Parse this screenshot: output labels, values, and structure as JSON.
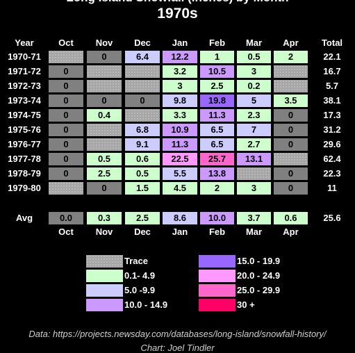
{
  "chart_data": {
    "type": "table",
    "title": "1970s",
    "columns": [
      "Oct",
      "Nov",
      "Dec",
      "Jan",
      "Feb",
      "Mar",
      "Apr"
    ],
    "header_year": "Year",
    "header_total": "Total",
    "rows": [
      {
        "year": "1970-71",
        "values": [
          null,
          "0",
          "6.4",
          "12.2",
          "1",
          "0.5",
          "2"
        ],
        "total": "22.1"
      },
      {
        "year": "1971-72",
        "values": [
          "0",
          null,
          null,
          "3.2",
          "10.5",
          "3",
          null
        ],
        "total": "16.7"
      },
      {
        "year": "1972-73",
        "values": [
          "0",
          null,
          null,
          "3",
          "2.5",
          "0.2",
          null
        ],
        "total": "5.7"
      },
      {
        "year": "1973-74",
        "values": [
          "0",
          "0",
          "0",
          "9.8",
          "19.8",
          "5",
          "3.5"
        ],
        "total": "38.1"
      },
      {
        "year": "1974-75",
        "values": [
          "0",
          "0.4",
          null,
          "3.3",
          "11.3",
          "2.3",
          "0"
        ],
        "total": "17.3"
      },
      {
        "year": "1975-76",
        "values": [
          "0",
          null,
          "6.8",
          "10.9",
          "6.5",
          "7",
          "0"
        ],
        "total": "31.2"
      },
      {
        "year": "1976-77",
        "values": [
          "0",
          null,
          "9.1",
          "11.3",
          "6.5",
          "2.7",
          "0"
        ],
        "total": "29.6"
      },
      {
        "year": "1977-78",
        "values": [
          "0",
          "0.5",
          "0.6",
          "22.5",
          "25.7",
          "13.1",
          null
        ],
        "total": "62.4"
      },
      {
        "year": "1978-79",
        "values": [
          "0",
          "2.5",
          "0.5",
          "5.5",
          "13.8",
          null,
          "0"
        ],
        "total": "22.3"
      },
      {
        "year": "1979-80",
        "values": [
          null,
          "0",
          "1.5",
          "4.5",
          "2",
          "3",
          "0"
        ],
        "total": "11"
      }
    ],
    "avg": {
      "label": "Avg",
      "values": [
        "0.0",
        "0.3",
        "2.5",
        "8.6",
        "10.0",
        "3.7",
        "0.6"
      ],
      "total": "25.6"
    },
    "legend": [
      {
        "label": "Trace",
        "color": "#a6a6a6",
        "dotted": true
      },
      {
        "label": "0.1- 4.9",
        "color": "#ccffcc"
      },
      {
        "label": "5.0 -9.9",
        "color": "#ccccff"
      },
      {
        "label": "10.0 - 14.9",
        "color": "#cc99ff"
      },
      {
        "label": "15.0 - 19.9",
        "color": "#9966ff"
      },
      {
        "label": "20.0 - 24.9",
        "color": "#ff99ff"
      },
      {
        "label": "25.0 - 29.9",
        "color": "#ff66cc"
      },
      {
        "label": "30 +",
        "color": "#ff0066"
      }
    ],
    "zero_color": "#808080",
    "source": "Data: https://projects.newsday.com/databases/long-island/snowfall-history/",
    "credit": "Chart: Joel Tindler"
  }
}
